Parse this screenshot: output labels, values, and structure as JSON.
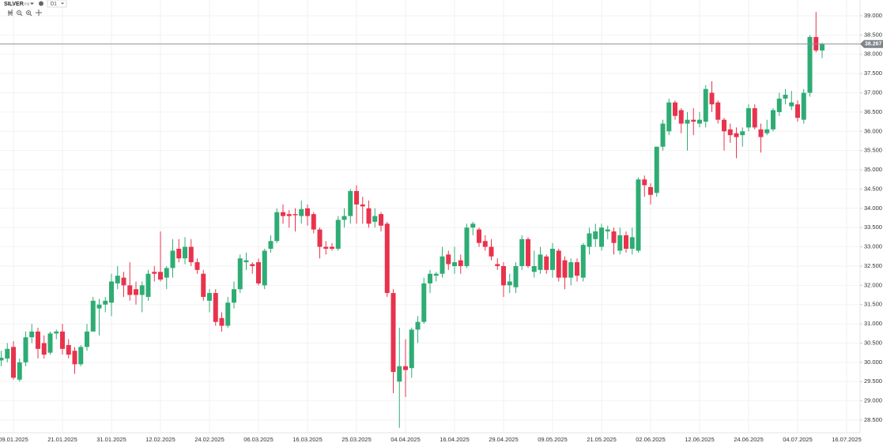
{
  "chart_data": {
    "type": "candlestick",
    "symbol": "SILVER",
    "symbol_note": "cmp",
    "timeframe": "D1",
    "up_color": "#2eac74",
    "down_color": "#e8334d",
    "grid": true,
    "categories": [
      null,
      null,
      "09.01.2025",
      null,
      null,
      null,
      null,
      null,
      null,
      null,
      "21.01.2025",
      null,
      null,
      null,
      null,
      null,
      null,
      null,
      "31.01.2025",
      null,
      null,
      null,
      null,
      null,
      null,
      null,
      "12.02.2025",
      null,
      null,
      null,
      null,
      null,
      null,
      null,
      "24.02.2025",
      null,
      null,
      null,
      null,
      null,
      null,
      null,
      "06.03.2025",
      null,
      null,
      null,
      null,
      null,
      null,
      null,
      "16.03.2025",
      null,
      null,
      null,
      null,
      null,
      null,
      null,
      "25.03.2025",
      null,
      null,
      null,
      null,
      null,
      null,
      null,
      "04.04.2025",
      null,
      null,
      null,
      null,
      null,
      null,
      null,
      "16.04.2025",
      null,
      null,
      null,
      null,
      null,
      null,
      null,
      "29.04.2025",
      null,
      null,
      null,
      null,
      null,
      null,
      null,
      "09.05.2025",
      null,
      null,
      null,
      null,
      null,
      null,
      null,
      "21.05.2025",
      null,
      null,
      null,
      null,
      null,
      null,
      null,
      "02.06.2025",
      null,
      null,
      null,
      null,
      null,
      null,
      null,
      "12.06.2025",
      null,
      null,
      null,
      null,
      null,
      null,
      null,
      "24.06.2025",
      null,
      null,
      null,
      null,
      null,
      null,
      null,
      "04.07.2025",
      null,
      null,
      null,
      null,
      null,
      null,
      null,
      "16.07.2025"
    ],
    "open": [
      30.05,
      30.1,
      30.4,
      29.55,
      30.0,
      30.65,
      30.8,
      30.5,
      30.25,
      30.75,
      30.8,
      30.45,
      30.3,
      29.95,
      30.4,
      30.8,
      31.4,
      31.5,
      31.55,
      32.05,
      32.2,
      32.0,
      31.9,
      31.75,
      31.7,
      32.35,
      32.35,
      32.2,
      32.45,
      32.95,
      32.7,
      33.0,
      32.6,
      32.3,
      31.6,
      31.8,
      31.15,
      30.95,
      31.55,
      31.9,
      32.6,
      32.55,
      32.6,
      32.0,
      32.95,
      33.15,
      33.9,
      33.85,
      33.85,
      33.8,
      34.0,
      33.85,
      33.45,
      33.0,
      33.0,
      32.95,
      33.7,
      33.8,
      34.45,
      34.1,
      34.0,
      33.65,
      33.85,
      33.6,
      31.8,
      29.5,
      29.9,
      29.85,
      30.85,
      31.05,
      32.05,
      32.25,
      32.3,
      32.8,
      32.5,
      32.65,
      32.5,
      33.5,
      33.45,
      33.15,
      33.0,
      32.55,
      32.5,
      32.0,
      31.95,
      32.5,
      33.2,
      32.35,
      32.4,
      32.75,
      32.4,
      32.9,
      32.65,
      32.2,
      32.6,
      32.2,
      33.0,
      33.2,
      33.0,
      33.4,
      33.4,
      32.9,
      33.3,
      32.95,
      32.9,
      34.75,
      34.55,
      34.4,
      35.6,
      36.0,
      36.75,
      36.55,
      36.2,
      36.3,
      36.2,
      36.25,
      37.0,
      36.75,
      36.3,
      36.05,
      35.95,
      35.9,
      36.1,
      36.6,
      36.05,
      35.95,
      36.05,
      36.5,
      36.85,
      36.65,
      36.7,
      36.3,
      37.0,
      38.45,
      38.1,
      null,
      null,
      null,
      null
    ],
    "high": [
      30.3,
      30.5,
      30.55,
      30.1,
      30.8,
      31.0,
      30.9,
      30.7,
      30.8,
      30.85,
      31.0,
      30.6,
      30.4,
      30.45,
      31.0,
      31.7,
      31.65,
      31.7,
      32.3,
      32.5,
      32.35,
      32.6,
      32.1,
      32.1,
      32.4,
      32.5,
      33.4,
      32.5,
      33.2,
      33.2,
      33.25,
      33.2,
      32.7,
      32.4,
      31.9,
      31.9,
      31.3,
      31.7,
      32.1,
      32.8,
      32.85,
      32.6,
      32.7,
      32.95,
      33.3,
      34.0,
      34.1,
      33.95,
      34.0,
      34.2,
      34.1,
      33.9,
      33.5,
      33.15,
      33.1,
      33.8,
      34.0,
      34.5,
      34.6,
      34.3,
      34.2,
      34.0,
      33.9,
      33.65,
      31.9,
      30.9,
      30.6,
      30.9,
      31.2,
      32.2,
      32.4,
      32.35,
      33.0,
      32.9,
      33.0,
      32.8,
      33.6,
      33.65,
      33.5,
      33.3,
      33.2,
      32.7,
      32.6,
      32.3,
      32.6,
      33.3,
      33.25,
      32.9,
      33.0,
      32.8,
      33.1,
      32.95,
      32.75,
      32.7,
      32.7,
      33.1,
      33.5,
      33.6,
      33.6,
      33.55,
      33.5,
      33.5,
      33.4,
      33.5,
      34.8,
      34.85,
      34.65,
      35.6,
      36.3,
      36.85,
      36.8,
      36.6,
      36.5,
      36.6,
      36.5,
      37.2,
      37.3,
      36.8,
      36.35,
      36.2,
      36.1,
      36.1,
      36.7,
      36.7,
      36.2,
      36.3,
      36.6,
      37.0,
      37.1,
      37.05,
      36.8,
      37.1,
      38.5,
      39.1,
      38.3,
      null,
      null,
      null,
      null
    ],
    "low": [
      29.9,
      30.0,
      29.55,
      29.5,
      29.9,
      30.5,
      30.1,
      30.1,
      30.2,
      30.6,
      30.2,
      30.1,
      29.7,
      29.9,
      30.3,
      30.8,
      30.7,
      31.3,
      31.2,
      31.9,
      31.7,
      31.6,
      31.5,
      31.3,
      31.6,
      32.1,
      32.1,
      31.9,
      32.2,
      32.6,
      32.55,
      32.5,
      32.3,
      31.6,
      31.3,
      30.95,
      30.8,
      30.9,
      31.4,
      31.8,
      32.4,
      32.3,
      32.0,
      31.9,
      32.85,
      33.1,
      33.6,
      33.5,
      33.4,
      33.6,
      33.55,
      33.35,
      32.7,
      32.8,
      32.9,
      32.9,
      33.5,
      33.6,
      33.6,
      33.6,
      33.5,
      33.5,
      33.4,
      31.7,
      29.2,
      28.3,
      29.1,
      29.6,
      30.5,
      31.0,
      31.8,
      32.1,
      32.2,
      32.4,
      32.3,
      32.3,
      32.45,
      33.3,
      33.0,
      32.9,
      32.65,
      32.4,
      31.7,
      31.8,
      31.8,
      32.4,
      32.45,
      32.2,
      32.3,
      32.3,
      32.2,
      32.1,
      31.9,
      32.0,
      32.1,
      32.1,
      32.8,
      33.0,
      32.9,
      33.2,
      32.8,
      32.8,
      32.85,
      32.8,
      32.85,
      34.3,
      34.1,
      34.3,
      35.5,
      35.9,
      36.3,
      35.95,
      35.5,
      35.9,
      36.1,
      36.1,
      36.5,
      36.2,
      35.5,
      35.7,
      35.3,
      35.6,
      36.0,
      36.05,
      35.45,
      35.9,
      36.0,
      36.4,
      36.7,
      36.55,
      36.25,
      36.2,
      36.9,
      38.05,
      37.9,
      null,
      null,
      null,
      null
    ],
    "close": [
      30.12,
      30.35,
      29.6,
      30.0,
      30.65,
      30.8,
      30.35,
      30.2,
      30.75,
      30.8,
      30.35,
      30.2,
      29.95,
      30.4,
      30.8,
      31.6,
      31.5,
      31.6,
      32.1,
      32.25,
      32.0,
      31.75,
      31.75,
      32.0,
      32.3,
      32.3,
      32.15,
      32.45,
      32.9,
      32.7,
      33.0,
      32.6,
      32.4,
      31.7,
      31.8,
      31.05,
      30.95,
      31.55,
      31.9,
      32.7,
      32.65,
      32.5,
      32.05,
      32.9,
      33.15,
      33.9,
      33.8,
      33.8,
      33.82,
      33.98,
      33.8,
      33.45,
      33.0,
      32.95,
      32.95,
      33.7,
      33.8,
      34.45,
      34.1,
      34.05,
      33.6,
      33.8,
      33.55,
      31.8,
      29.75,
      29.9,
      29.8,
      30.85,
      31.05,
      32.05,
      32.3,
      32.3,
      32.75,
      32.55,
      32.6,
      32.5,
      33.5,
      33.6,
      33.1,
      33.0,
      32.75,
      32.5,
      32.0,
      32.1,
      32.5,
      33.2,
      32.5,
      32.5,
      32.8,
      32.4,
      32.95,
      32.2,
      32.2,
      32.6,
      32.25,
      33.05,
      33.35,
      33.4,
      33.5,
      33.45,
      33.1,
      33.3,
      32.95,
      33.25,
      34.75,
      34.6,
      34.35,
      35.6,
      36.2,
      36.75,
      36.4,
      36.2,
      36.3,
      36.25,
      36.3,
      37.1,
      36.7,
      36.3,
      36.0,
      35.9,
      35.85,
      36.0,
      36.6,
      36.1,
      35.85,
      36.05,
      36.55,
      36.85,
      36.95,
      36.75,
      36.35,
      37.0,
      38.45,
      38.1,
      38.27,
      null,
      null,
      null,
      null
    ],
    "last_price": 38.267,
    "ylim": [
      28.5,
      39
    ],
    "yticks": [
      {
        "value": 28.5,
        "label": "28.500"
      },
      {
        "value": 29,
        "label": "29.000"
      },
      {
        "value": 29.5,
        "label": "29.500"
      },
      {
        "value": 30,
        "label": "30.000"
      },
      {
        "value": 30.5,
        "label": "30.500"
      },
      {
        "value": 31,
        "label": "31.000"
      },
      {
        "value": 31.5,
        "label": "31.500"
      },
      {
        "value": 32,
        "label": "32.000"
      },
      {
        "value": 32.5,
        "label": "32.500"
      },
      {
        "value": 33,
        "label": "33.000"
      },
      {
        "value": 33.5,
        "label": "33.500"
      },
      {
        "value": 34,
        "label": "34.000"
      },
      {
        "value": 34.5,
        "label": "34.500"
      },
      {
        "value": 35,
        "label": "35.000"
      },
      {
        "value": 35.5,
        "label": "35.500"
      },
      {
        "value": 36,
        "label": "36.000"
      },
      {
        "value": 36.5,
        "label": "36.500"
      },
      {
        "value": 37,
        "label": "37.000"
      },
      {
        "value": 37.5,
        "label": "37.500"
      },
      {
        "value": 38,
        "label": "38.000"
      },
      {
        "value": 38.5,
        "label": "38.500"
      },
      {
        "value": 39,
        "label": "39.000"
      }
    ]
  }
}
